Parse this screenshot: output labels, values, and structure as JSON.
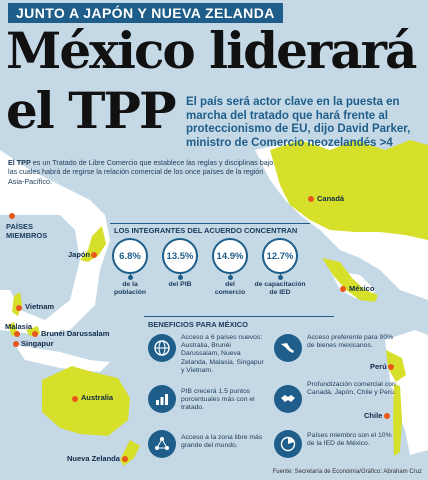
{
  "kicker": "JUNTO A JAPÓN Y NUEVA ZELANDA",
  "headline": {
    "line1": "México liderará",
    "line2": "el TPP"
  },
  "deck": "El país será actor clave en la puesta en marcha del tratado que hará frente al proteccionismo de EU, dijo David Parker, ministro de Comercio neozelandés >4",
  "intro": {
    "bold": "El TPP",
    "rest": " es un Tratado de Libre Comercio que establece las reglas y disciplinas bajo las cuales habrá de regirse la relación comercial de los once países de la región Asia-Pacífico."
  },
  "legend": {
    "label": "PAÍSES MIEMBROS"
  },
  "countries": {
    "japon": "Japón",
    "vietnam": "Vietnam",
    "malasia": "Malasia",
    "brunei": "Brunéi Darussalam",
    "singapur": "Singapur",
    "australia": "Australia",
    "nueva_zelanda": "Nueva Zelanda",
    "canada": "Canadá",
    "mexico": "México",
    "peru": "Perú",
    "chile": "Chile"
  },
  "stats": {
    "title": "LOS INTEGRANTES DEL ACUERDO CONCENTRAN",
    "items": [
      {
        "value": "6.8%",
        "label1": "de la",
        "label2": "población"
      },
      {
        "value": "13.5%",
        "label1": "del PIB",
        "label2": ""
      },
      {
        "value": "14.9%",
        "label1": "del",
        "label2": "comercio"
      },
      {
        "value": "12.7%",
        "label1": "de capacitación",
        "label2": "de IED"
      }
    ]
  },
  "benefits": {
    "title": "BENEFICIOS PARA MÉXICO",
    "items": [
      {
        "icon": "globe-icon",
        "text": "Acceso a 6 países nuevos: Australia, Brunéi Darussalam, Nueva Zelanda, Malasia, Singapur y Vietnam."
      },
      {
        "icon": "bar-chart-icon",
        "text": "PIB crecerá 1.5 puntos porcentuales más con el tratado."
      },
      {
        "icon": "network-icon",
        "text": "Acceso a la zona libre más grande del mundo."
      },
      {
        "icon": "mexico-map-icon",
        "text": "Acceso preferente para 90% de bienes mexicanos."
      },
      {
        "icon": "handshake-icon",
        "text": "Profundización comercial con Canadá, Japón, Chile y Perú."
      },
      {
        "icon": "pie-chart-icon",
        "text": "Países miembro son el 10% de la IED de México."
      }
    ]
  },
  "credit": "Fuente: Secretaría de Economía/Gráfico: Abraham Cruz",
  "colors": {
    "ocean": "#c4d8e6",
    "land": "#ffffff",
    "member": "#d6e02a",
    "accent": "#1f5e8a",
    "dot": "#e8581c"
  }
}
